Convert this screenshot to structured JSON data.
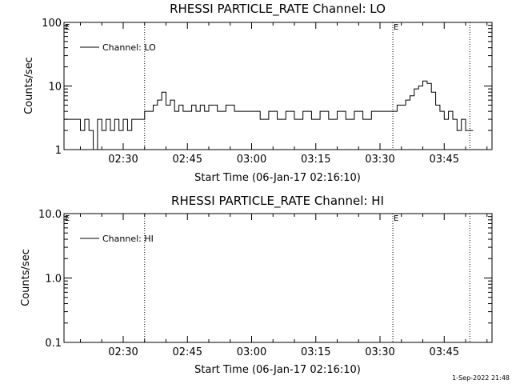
{
  "chart_data": [
    {
      "type": "line",
      "title": "RHESSI PARTICLE_RATE Channel: LO",
      "xlabel": "Start Time (06-Jan-17 02:16:10)",
      "ylabel": "Counts/sec",
      "yscale": "log",
      "ylim": [
        1,
        100
      ],
      "xlim": [
        "02:16:10",
        "03:56:10"
      ],
      "xtick_labels": [
        "02:30",
        "02:45",
        "03:00",
        "03:15",
        "03:30",
        "03:45"
      ],
      "ytick_labels": [
        "1",
        "10",
        "100"
      ],
      "grid": false,
      "legend": {
        "location": "top-left",
        "entries": [
          "Channel: LO"
        ]
      },
      "annotations": [
        "E",
        "E"
      ],
      "vertical_markers": [
        "02:35:00",
        "03:33:00",
        "03:51:00"
      ],
      "series": [
        {
          "name": "Channel: LO",
          "x": [
            "02:16:10",
            "02:19:00",
            "02:20:00",
            "02:21:00",
            "02:22:00",
            "02:23:00",
            "02:24:00",
            "02:25:00",
            "02:26:00",
            "02:27:00",
            "02:28:00",
            "02:29:00",
            "02:30:00",
            "02:31:00",
            "02:32:00",
            "02:33:00",
            "02:34:00",
            "02:35:00",
            "02:36:00",
            "02:37:00",
            "02:38:00",
            "02:39:00",
            "02:40:00",
            "02:41:00",
            "02:42:00",
            "02:43:00",
            "02:44:00",
            "02:45:00",
            "02:46:00",
            "02:47:00",
            "02:48:00",
            "02:49:00",
            "02:50:00",
            "02:52:00",
            "02:54:00",
            "02:56:00",
            "02:58:00",
            "03:00:00",
            "03:02:00",
            "03:04:00",
            "03:06:00",
            "03:08:00",
            "03:10:00",
            "03:12:00",
            "03:14:00",
            "03:16:00",
            "03:18:00",
            "03:20:00",
            "03:22:00",
            "03:24:00",
            "03:26:00",
            "03:28:00",
            "03:30:00",
            "03:32:00",
            "03:34:00",
            "03:35:00",
            "03:36:00",
            "03:37:00",
            "03:38:00",
            "03:39:00",
            "03:40:00",
            "03:41:00",
            "03:42:00",
            "03:43:00",
            "03:44:00",
            "03:45:00",
            "03:46:00",
            "03:47:00",
            "03:48:00",
            "03:49:00",
            "03:50:00",
            "03:51:00"
          ],
          "values": [
            3,
            3,
            2,
            3,
            2,
            1,
            3,
            2,
            3,
            2,
            3,
            2,
            3,
            2,
            3,
            3,
            3,
            4,
            4,
            5,
            6,
            8,
            5,
            6,
            4,
            5,
            4,
            4,
            5,
            4,
            5,
            4,
            5,
            4,
            5,
            4,
            4,
            4,
            3,
            4,
            3,
            4,
            3,
            4,
            3,
            4,
            3,
            4,
            3,
            4,
            3,
            4,
            4,
            4,
            5,
            5,
            6,
            7,
            9,
            10,
            12,
            11,
            8,
            5,
            4,
            3,
            4,
            3,
            2,
            3,
            2,
            2
          ]
        }
      ]
    },
    {
      "type": "line",
      "title": "RHESSI PARTICLE_RATE Channel: HI",
      "xlabel": "Start Time (06-Jan-17 02:16:10)",
      "ylabel": "Counts/sec",
      "yscale": "log",
      "ylim": [
        0.1,
        10
      ],
      "xlim": [
        "02:16:10",
        "03:56:10"
      ],
      "xtick_labels": [
        "02:30",
        "02:45",
        "03:00",
        "03:15",
        "03:30",
        "03:45"
      ],
      "ytick_labels": [
        "0.1",
        "1.0",
        "10.0"
      ],
      "grid": false,
      "legend": {
        "location": "top-left",
        "entries": [
          "Channel: HI"
        ]
      },
      "annotations": [
        "E",
        "E"
      ],
      "vertical_markers": [
        "02:35:00",
        "03:33:00",
        "03:51:00"
      ],
      "series": [
        {
          "name": "Channel: HI",
          "x": [],
          "values": []
        }
      ]
    }
  ],
  "footer": {
    "timestamp": "1-Sep-2022 21:48"
  }
}
